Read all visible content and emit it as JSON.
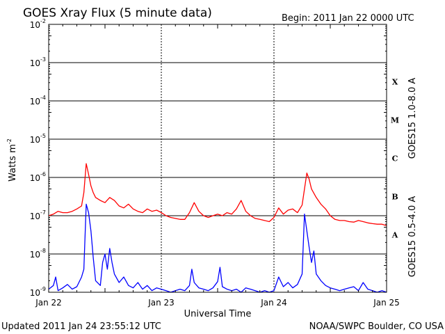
{
  "header": {
    "title": "GOES Xray Flux (5 minute data)",
    "begin": "Begin:  2011 Jan 22 0000 UTC"
  },
  "footer": {
    "updated": "Updated 2011 Jan 24 23:55:12 UTC",
    "credit": "NOAA/SWPC Boulder, CO USA"
  },
  "chart_data": {
    "type": "line",
    "title": "GOES Xray Flux (5 minute data)",
    "xlabel": "Universal Time",
    "ylabel": "Watts m",
    "ylabel_sup": "-2",
    "yscale": "log",
    "ylim": [
      1e-09,
      0.01
    ],
    "xlim": [
      0,
      72
    ],
    "x_unit": "hours since 2011 Jan 22 0000 UTC",
    "x_ticks": [
      {
        "x": 0,
        "label": "Jan 22"
      },
      {
        "x": 24,
        "label": "Jan 23"
      },
      {
        "x": 48,
        "label": "Jan 24"
      },
      {
        "x": 72,
        "label": "Jan 25"
      }
    ],
    "y_ticks": [
      {
        "base": "10",
        "exp": "-9"
      },
      {
        "base": "10",
        "exp": "-8"
      },
      {
        "base": "10",
        "exp": "-7"
      },
      {
        "base": "10",
        "exp": "-6"
      },
      {
        "base": "10",
        "exp": "-5"
      },
      {
        "base": "10",
        "exp": "-4"
      },
      {
        "base": "10",
        "exp": "-3"
      },
      {
        "base": "10",
        "exp": "-2"
      }
    ],
    "flare_classes": [
      "A",
      "B",
      "C",
      "M",
      "X"
    ],
    "grid": true,
    "series": [
      {
        "name": "GOES15 1.0-8.0 A",
        "color": "#ff0000",
        "x": [
          0,
          1,
          2,
          3,
          4,
          5,
          6,
          7,
          7.5,
          8,
          8.5,
          9,
          9.5,
          10,
          11,
          12,
          13,
          14,
          15,
          16,
          17,
          18,
          19,
          20,
          21,
          22,
          23,
          24,
          25,
          26,
          27,
          28,
          29,
          30,
          31,
          32,
          33,
          34,
          35,
          36,
          37,
          38,
          39,
          40,
          41,
          42,
          43,
          44,
          45,
          46,
          47,
          48,
          49,
          50,
          51,
          52,
          53,
          54,
          54.5,
          55,
          55.5,
          56,
          57,
          58,
          59,
          60,
          61,
          62,
          63,
          64,
          65,
          66,
          67,
          68,
          69,
          70,
          71,
          72
        ],
        "y": [
          1e-07,
          1.1e-07,
          1.3e-07,
          1.2e-07,
          1.2e-07,
          1.3e-07,
          1.5e-07,
          1.8e-07,
          4e-07,
          2.3e-06,
          1.2e-06,
          6e-07,
          4e-07,
          3e-07,
          2.5e-07,
          2.2e-07,
          3e-07,
          2.5e-07,
          1.8e-07,
          1.6e-07,
          2e-07,
          1.5e-07,
          1.3e-07,
          1.2e-07,
          1.5e-07,
          1.3e-07,
          1.4e-07,
          1.2e-07,
          1e-07,
          9e-08,
          8.5e-08,
          8e-08,
          8e-08,
          1.2e-07,
          2.2e-07,
          1.3e-07,
          1e-07,
          9e-08,
          1e-07,
          1.1e-07,
          1e-07,
          1.2e-07,
          1.1e-07,
          1.5e-07,
          2.5e-07,
          1.3e-07,
          1e-07,
          8.5e-08,
          8e-08,
          7.5e-08,
          7e-08,
          9e-08,
          1.6e-07,
          1.1e-07,
          1.4e-07,
          1.5e-07,
          1.2e-07,
          1.9e-07,
          5e-07,
          1.3e-06,
          9e-07,
          5e-07,
          3e-07,
          2e-07,
          1.5e-07,
          1e-07,
          8e-08,
          7.5e-08,
          7.5e-08,
          7e-08,
          6.8e-08,
          7.5e-08,
          7e-08,
          6.5e-08,
          6.2e-08,
          6e-08,
          6e-08,
          5.5e-08
        ]
      },
      {
        "name": "GOES15 0.5-4.0 A",
        "color": "#0000ff",
        "x": [
          0,
          1,
          1.5,
          2,
          3,
          4,
          5,
          6,
          7,
          7.5,
          8,
          8.5,
          9,
          9.5,
          10,
          11,
          11.5,
          12,
          12.5,
          13,
          13.5,
          14,
          15,
          16,
          17,
          18,
          19,
          20,
          21,
          22,
          23,
          24,
          25,
          26,
          27,
          28,
          29,
          30,
          30.5,
          31,
          32,
          33,
          34,
          35,
          36,
          36.5,
          37,
          38,
          39,
          40,
          41,
          42,
          43,
          44,
          45,
          46,
          47,
          48,
          49,
          50,
          51,
          52,
          53,
          54,
          54.5,
          55,
          55.5,
          56,
          56.5,
          57,
          58,
          59,
          60,
          61,
          62,
          63,
          64,
          65,
          66,
          67,
          68,
          69,
          70,
          71,
          72
        ],
        "y": [
          1.2e-09,
          1.5e-09,
          2.5e-09,
          1.1e-09,
          1.3e-09,
          1.6e-09,
          1.2e-09,
          1.4e-09,
          2.5e-09,
          4e-09,
          2e-07,
          1.2e-07,
          4e-08,
          8e-09,
          2e-09,
          1.5e-09,
          6e-09,
          1e-08,
          4e-09,
          1.4e-08,
          6e-09,
          3e-09,
          1.8e-09,
          2.5e-09,
          1.5e-09,
          1.3e-09,
          1.8e-09,
          1.2e-09,
          1.5e-09,
          1.1e-09,
          1.3e-09,
          1.2e-09,
          1.1e-09,
          1e-09,
          1.1e-09,
          1.2e-09,
          1.1e-09,
          1.5e-09,
          4e-09,
          1.8e-09,
          1.3e-09,
          1.2e-09,
          1.1e-09,
          1.3e-09,
          1.9e-09,
          4.5e-09,
          1.4e-09,
          1.2e-09,
          1.1e-09,
          1.2e-09,
          1e-09,
          1.3e-09,
          1.2e-09,
          1.1e-09,
          1e-09,
          1.1e-09,
          1e-09,
          1.1e-09,
          2.5e-09,
          1.4e-09,
          1.8e-09,
          1.3e-09,
          1.6e-09,
          3e-09,
          1.1e-07,
          4e-08,
          1.5e-08,
          6e-09,
          1.2e-08,
          3e-09,
          2e-09,
          1.5e-09,
          1.3e-09,
          1.2e-09,
          1.1e-09,
          1.2e-09,
          1.3e-09,
          1.4e-09,
          1.1e-09,
          1.8e-09,
          1.2e-09,
          1.1e-09,
          1e-09,
          1.1e-09,
          1e-09
        ]
      }
    ]
  }
}
